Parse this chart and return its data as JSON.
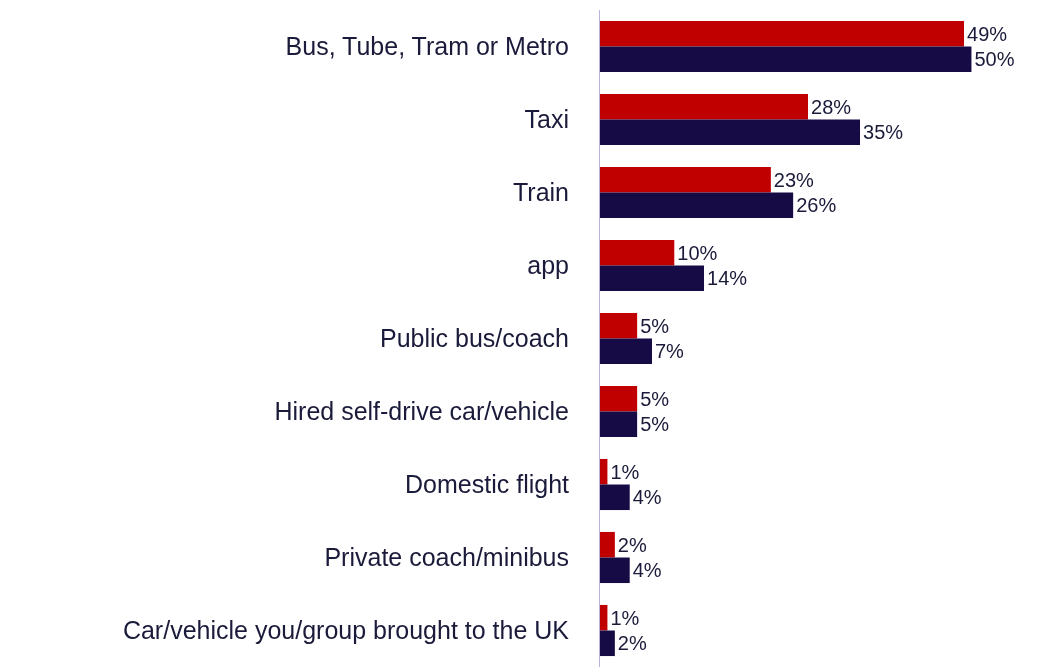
{
  "chart_data": {
    "type": "bar",
    "orientation": "horizontal",
    "categories": [
      "Bus, Tube, Tram or Metro",
      "Taxi",
      "Train",
      "app",
      "Public bus/coach",
      "Hired self-drive car/vehicle",
      "Domestic flight",
      "Private coach/minibus",
      "Car/vehicle you/group brought to the UK"
    ],
    "series": [
      {
        "color": "#c00000",
        "values": [
          49,
          28,
          23,
          10,
          5,
          5,
          1,
          2,
          1
        ],
        "value_labels": [
          "49%",
          "28%",
          "23%",
          "10%",
          "5%",
          "5%",
          "1%",
          "2%",
          "1%"
        ]
      },
      {
        "color": "#170b46",
        "values": [
          50,
          35,
          26,
          14,
          7,
          5,
          4,
          4,
          2
        ],
        "value_labels": [
          "50%",
          "35%",
          "26%",
          "14%",
          "7%",
          "5%",
          "4%",
          "4%",
          "2%"
        ]
      }
    ],
    "tick_labels": "y"
  }
}
